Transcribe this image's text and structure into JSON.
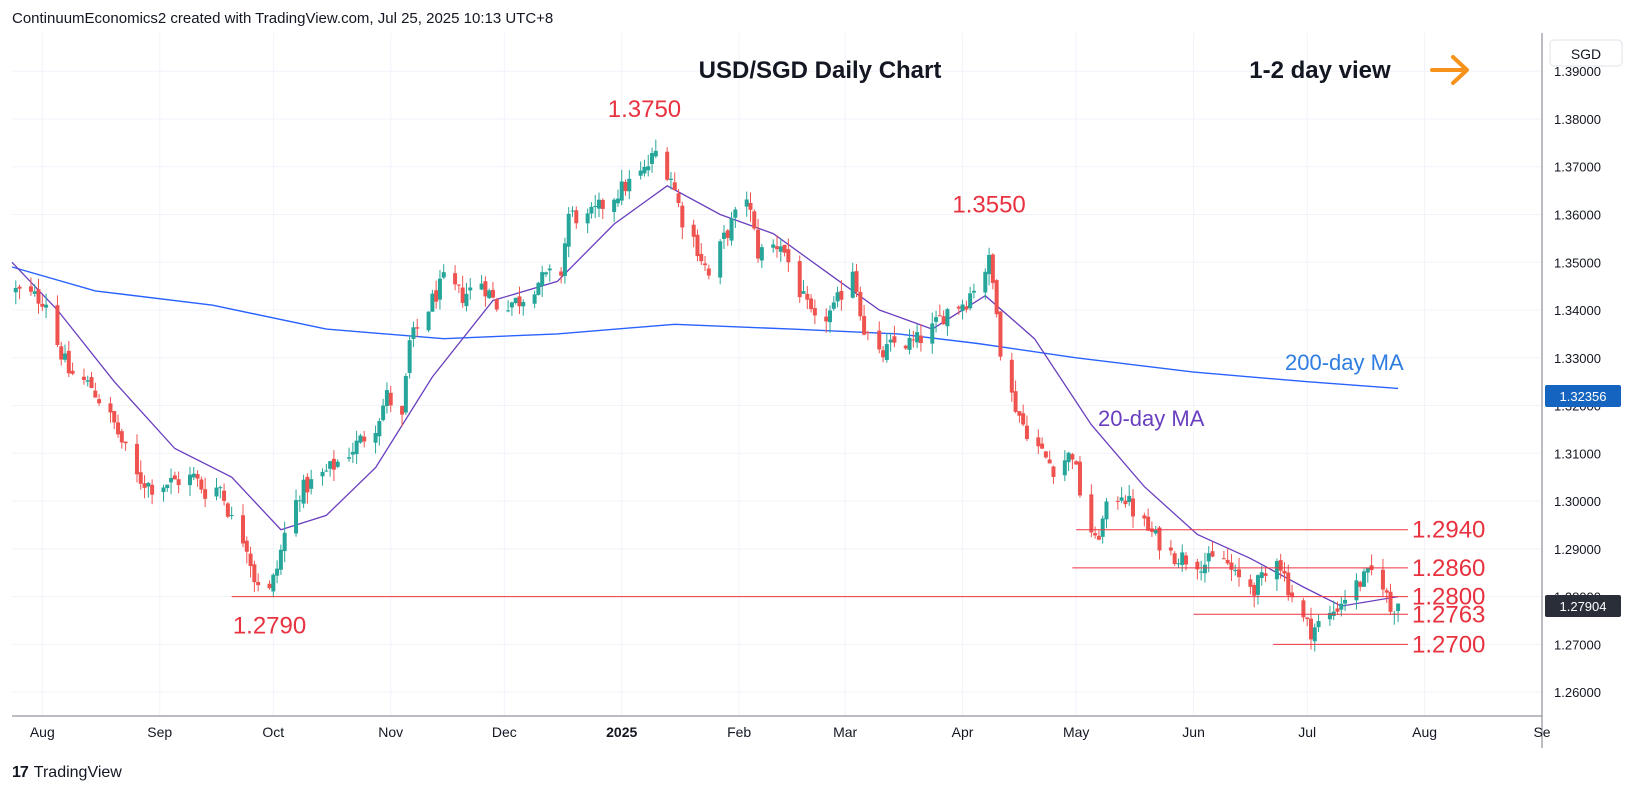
{
  "header": {
    "credit": "ContinuumEconomics2 created with TradingView.com, Jul 25, 2025 10:13 UTC+8"
  },
  "footer": {
    "brand": "TradingView"
  },
  "colors": {
    "up": "#26a69a",
    "down": "#ef5350",
    "ma20": "#6a3fbf",
    "ma200": "#2962ff",
    "level": "#ef3340",
    "annotation": "#e8323f",
    "arrow": "#f7931a",
    "ma200_label": "#2f7de1",
    "ma20_label": "#6a3fbf",
    "price_tag": "#2a2e39",
    "price_tag_blue": "#1565c0"
  },
  "chart_data": {
    "type": "candlestick",
    "title": "USD/SGD Daily Chart",
    "view_label": "1-2 day view",
    "view_icon": "arrow-right-icon",
    "currency": "SGD",
    "ylim": [
      1.255,
      1.398
    ],
    "y_ticks": [
      "1.26000",
      "1.27000",
      "1.28000",
      "1.29000",
      "1.30000",
      "1.31000",
      "1.32000",
      "1.33000",
      "1.34000",
      "1.35000",
      "1.36000",
      "1.37000",
      "1.38000",
      "1.39000"
    ],
    "x_range": [
      "2024-07-24",
      "2025-09-01"
    ],
    "x_ticks": [
      {
        "date": "2024-08-01",
        "label": "Aug",
        "bold": false
      },
      {
        "date": "2024-09-01",
        "label": "Sep",
        "bold": false
      },
      {
        "date": "2024-10-01",
        "label": "Oct",
        "bold": false
      },
      {
        "date": "2024-11-01",
        "label": "Nov",
        "bold": false
      },
      {
        "date": "2024-12-01",
        "label": "Dec",
        "bold": false
      },
      {
        "date": "2025-01-01",
        "label": "2025",
        "bold": true
      },
      {
        "date": "2025-02-01",
        "label": "Feb",
        "bold": false
      },
      {
        "date": "2025-03-01",
        "label": "Mar",
        "bold": false
      },
      {
        "date": "2025-04-01",
        "label": "Apr",
        "bold": false
      },
      {
        "date": "2025-05-01",
        "label": "May",
        "bold": false
      },
      {
        "date": "2025-06-01",
        "label": "Jun",
        "bold": false
      },
      {
        "date": "2025-07-01",
        "label": "Jul",
        "bold": false
      },
      {
        "date": "2025-08-01",
        "label": "Aug",
        "bold": false
      },
      {
        "date": "2025-09-01",
        "label": "Se",
        "bold": false
      }
    ],
    "close_path": [
      [
        "2024-07-25",
        1.344
      ],
      [
        "2024-08-02",
        1.342
      ],
      [
        "2024-08-05",
        1.333
      ],
      [
        "2024-08-08",
        1.327
      ],
      [
        "2024-08-14",
        1.324
      ],
      [
        "2024-08-20",
        1.316
      ],
      [
        "2024-08-26",
        1.305
      ],
      [
        "2024-08-30",
        1.303
      ],
      [
        "2024-09-04",
        1.304
      ],
      [
        "2024-09-10",
        1.305
      ],
      [
        "2024-09-13",
        1.302
      ],
      [
        "2024-09-17",
        1.303
      ],
      [
        "2024-09-20",
        1.296
      ],
      [
        "2024-09-24",
        1.291
      ],
      [
        "2024-09-26",
        1.284
      ],
      [
        "2024-09-30",
        1.281
      ],
      [
        "2024-10-02",
        1.286
      ],
      [
        "2024-10-04",
        1.293
      ],
      [
        "2024-10-08",
        1.302
      ],
      [
        "2024-10-15",
        1.306
      ],
      [
        "2024-10-22",
        1.311
      ],
      [
        "2024-10-28",
        1.316
      ],
      [
        "2024-10-31",
        1.322
      ],
      [
        "2024-11-04",
        1.317
      ],
      [
        "2024-11-06",
        1.333
      ],
      [
        "2024-11-12",
        1.342
      ],
      [
        "2024-11-15",
        1.346
      ],
      [
        "2024-11-20",
        1.343
      ],
      [
        "2024-11-25",
        1.346
      ],
      [
        "2024-11-29",
        1.341
      ],
      [
        "2024-12-05",
        1.342
      ],
      [
        "2024-12-10",
        1.346
      ],
      [
        "2024-12-16",
        1.348
      ],
      [
        "2024-12-18",
        1.36
      ],
      [
        "2024-12-23",
        1.359
      ],
      [
        "2024-12-27",
        1.362
      ],
      [
        "2025-01-02",
        1.366
      ],
      [
        "2025-01-07",
        1.369
      ],
      [
        "2025-01-10",
        1.373
      ],
      [
        "2025-01-14",
        1.368
      ],
      [
        "2025-01-17",
        1.359
      ],
      [
        "2025-01-20",
        1.355
      ],
      [
        "2025-01-24",
        1.347
      ],
      [
        "2025-01-28",
        1.355
      ],
      [
        "2025-02-03",
        1.364
      ],
      [
        "2025-02-06",
        1.352
      ],
      [
        "2025-02-12",
        1.354
      ],
      [
        "2025-02-18",
        1.342
      ],
      [
        "2025-02-21",
        1.337
      ],
      [
        "2025-02-26",
        1.34
      ],
      [
        "2025-03-03",
        1.349
      ],
      [
        "2025-03-06",
        1.336
      ],
      [
        "2025-03-10",
        1.33
      ],
      [
        "2025-03-14",
        1.333
      ],
      [
        "2025-03-19",
        1.333
      ],
      [
        "2025-03-24",
        1.336
      ],
      [
        "2025-03-28",
        1.34
      ],
      [
        "2025-04-02",
        1.342
      ],
      [
        "2025-04-04",
        1.345
      ],
      [
        "2025-04-08",
        1.35
      ],
      [
        "2025-04-10",
        1.341
      ],
      [
        "2025-04-11",
        1.332
      ],
      [
        "2025-04-14",
        1.322
      ],
      [
        "2025-04-17",
        1.316
      ],
      [
        "2025-04-22",
        1.31
      ],
      [
        "2025-04-25",
        1.307
      ],
      [
        "2025-04-30",
        1.31
      ],
      [
        "2025-05-02",
        1.302
      ],
      [
        "2025-05-06",
        1.291
      ],
      [
        "2025-05-09",
        1.298
      ],
      [
        "2025-05-13",
        1.302
      ],
      [
        "2025-05-16",
        1.298
      ],
      [
        "2025-05-20",
        1.294
      ],
      [
        "2025-05-26",
        1.289
      ],
      [
        "2025-05-30",
        1.288
      ],
      [
        "2025-06-04",
        1.287
      ],
      [
        "2025-06-09",
        1.288
      ],
      [
        "2025-06-12",
        1.284
      ],
      [
        "2025-06-17",
        1.282
      ],
      [
        "2025-06-20",
        1.284
      ],
      [
        "2025-06-23",
        1.289
      ],
      [
        "2025-06-26",
        1.282
      ],
      [
        "2025-06-30",
        1.275
      ],
      [
        "2025-07-02",
        1.273
      ],
      [
        "2025-07-07",
        1.276
      ],
      [
        "2025-07-11",
        1.28
      ],
      [
        "2025-07-15",
        1.283
      ],
      [
        "2025-07-18",
        1.285
      ],
      [
        "2025-07-21",
        1.283
      ],
      [
        "2025-07-23",
        1.277
      ],
      [
        "2025-07-25",
        1.279
      ]
    ],
    "series": [
      {
        "name": "20-day MA"
      },
      {
        "name": "200-day MA",
        "last_value": "1.32356"
      }
    ],
    "ma200_path": [
      [
        "2024-07-24",
        1.349
      ],
      [
        "2024-08-15",
        1.344
      ],
      [
        "2024-09-15",
        1.341
      ],
      [
        "2024-10-15",
        1.336
      ],
      [
        "2024-11-15",
        1.334
      ],
      [
        "2024-12-15",
        1.335
      ],
      [
        "2025-01-15",
        1.337
      ],
      [
        "2025-02-15",
        1.336
      ],
      [
        "2025-03-15",
        1.335
      ],
      [
        "2025-04-05",
        1.333
      ],
      [
        "2025-05-01",
        1.33
      ],
      [
        "2025-06-01",
        1.327
      ],
      [
        "2025-07-01",
        1.325
      ],
      [
        "2025-07-25",
        1.3236
      ]
    ],
    "ma20_path": [
      [
        "2024-07-24",
        1.35
      ],
      [
        "2024-08-05",
        1.34
      ],
      [
        "2024-08-20",
        1.325
      ],
      [
        "2024-09-05",
        1.311
      ],
      [
        "2024-09-20",
        1.305
      ],
      [
        "2024-10-03",
        1.294
      ],
      [
        "2024-10-15",
        1.297
      ],
      [
        "2024-10-28",
        1.307
      ],
      [
        "2024-11-12",
        1.326
      ],
      [
        "2024-11-28",
        1.342
      ],
      [
        "2024-12-15",
        1.346
      ],
      [
        "2024-12-30",
        1.358
      ],
      [
        "2025-01-13",
        1.366
      ],
      [
        "2025-01-27",
        1.36
      ],
      [
        "2025-02-10",
        1.356
      ],
      [
        "2025-02-24",
        1.348
      ],
      [
        "2025-03-10",
        1.34
      ],
      [
        "2025-03-24",
        1.336
      ],
      [
        "2025-04-07",
        1.343
      ],
      [
        "2025-04-20",
        1.334
      ],
      [
        "2025-05-05",
        1.316
      ],
      [
        "2025-05-19",
        1.303
      ],
      [
        "2025-06-02",
        1.293
      ],
      [
        "2025-06-16",
        1.288
      ],
      [
        "2025-06-30",
        1.282
      ],
      [
        "2025-07-10",
        1.278
      ],
      [
        "2025-07-25",
        1.28
      ]
    ],
    "levels": [
      {
        "value": 1.294,
        "label": "1.2940",
        "from": "2025-05-01"
      },
      {
        "value": 1.286,
        "label": "1.2860",
        "from": "2025-04-30"
      },
      {
        "value": 1.28,
        "label": "1.2800",
        "from": "2024-09-20"
      },
      {
        "value": 1.2763,
        "label": "1.2763",
        "from": "2025-06-01"
      },
      {
        "value": 1.27,
        "label": "1.2700",
        "from": "2025-06-22"
      }
    ],
    "annotations": [
      {
        "text": "1.3750",
        "date": "2025-01-07",
        "value": 1.375
      },
      {
        "text": "1.3550",
        "date": "2025-04-08",
        "value": 1.355
      },
      {
        "text": "1.2790",
        "date": "2024-09-30",
        "value": 1.279
      }
    ],
    "last_price": "1.27904"
  }
}
